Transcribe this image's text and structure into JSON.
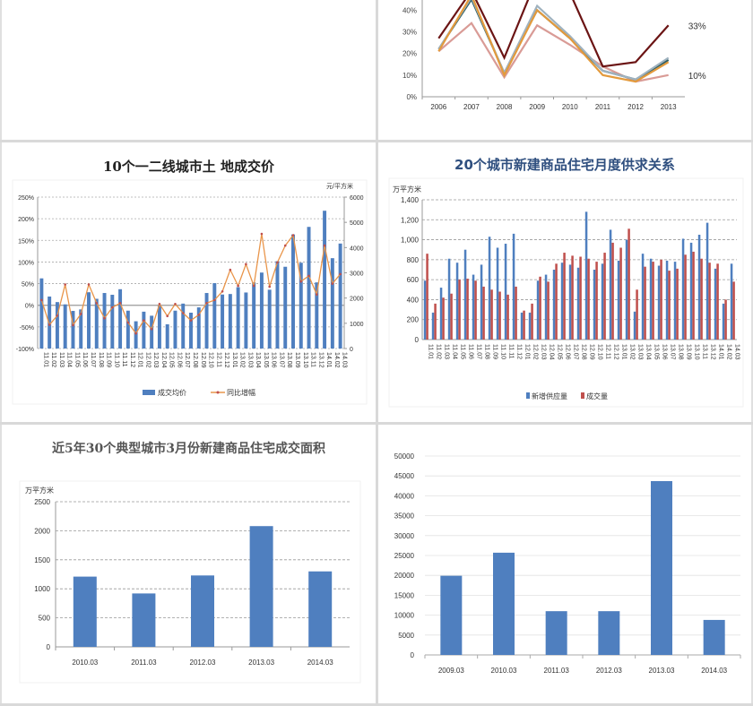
{
  "layout": {
    "grid_color": "#d9d9d9"
  },
  "chart_data": [
    {
      "id": "growth-lines",
      "type": "line",
      "title": "",
      "x": [
        "2006",
        "2007",
        "2008",
        "2009",
        "2010",
        "2011",
        "2012",
        "2013"
      ],
      "yticks": [
        "0%",
        "10%",
        "20%",
        "30%",
        "40%"
      ],
      "ylim": [
        0,
        0.48
      ],
      "series": [
        {
          "name": "dark-red",
          "color": "#6b1414",
          "values": [
            0.27,
            0.49,
            0.18,
            0.55,
            0.48,
            0.14,
            0.16,
            0.33
          ]
        },
        {
          "name": "orange",
          "color": "#e39a3c",
          "values": [
            0.21,
            0.47,
            0.1,
            0.4,
            0.27,
            0.1,
            0.07,
            0.16
          ]
        },
        {
          "name": "grey-blue",
          "color": "#9fb2bf",
          "values": [
            0.22,
            0.46,
            0.11,
            0.42,
            0.28,
            0.12,
            0.08,
            0.18
          ]
        },
        {
          "name": "teal",
          "color": "#2f5f63",
          "values": [
            0.22,
            0.45,
            0.11,
            0.4,
            0.27,
            0.12,
            0.08,
            0.17
          ]
        },
        {
          "name": "pink",
          "color": "#d99b96",
          "values": [
            0.21,
            0.34,
            0.09,
            0.33,
            0.24,
            0.14,
            0.07,
            0.1
          ]
        }
      ],
      "annotations": [
        "33%",
        "10%"
      ]
    },
    {
      "id": "land-price",
      "type": "bar+line",
      "title": "10个一二线城市土 地成交价",
      "right_axis_unit": "元/平方米",
      "left_yticks": [
        "250%",
        "200%",
        "150%",
        "100%",
        "50%",
        "0%",
        "-50%",
        "-100%"
      ],
      "right_yticks": [
        "6000",
        "5000",
        "4000",
        "3000",
        "2000",
        "1000",
        "0"
      ],
      "left_ylim": [
        -1.0,
        2.5
      ],
      "right_ylim": [
        0,
        6000
      ],
      "categories": [
        "11.01",
        "11.02",
        "11.03",
        "11.04",
        "11.05",
        "11.06",
        "11.07",
        "11.08",
        "11.09",
        "11.10",
        "11.11",
        "11.12",
        "12.01",
        "12.02",
        "12.03",
        "12.04",
        "12.05",
        "12.06",
        "12.07",
        "12.08",
        "12.09",
        "12.10",
        "12.11",
        "12.12",
        "13.01",
        "13.02",
        "13.03",
        "13.04",
        "13.05",
        "13.06",
        "13.07",
        "13.08",
        "13.09",
        "13.10",
        "13.11",
        "13.12",
        "14.01",
        "14.02",
        "14.03"
      ],
      "series": [
        {
          "name": "成交均价",
          "type": "bar",
          "axis": "right",
          "color": "#4f7fbf",
          "values": [
            2780,
            2060,
            1840,
            1750,
            1490,
            1550,
            2230,
            1970,
            2200,
            2130,
            2350,
            1500,
            1080,
            1460,
            1300,
            1700,
            960,
            1500,
            1780,
            1420,
            1630,
            2200,
            2590,
            2140,
            2160,
            2430,
            2220,
            2620,
            3010,
            2330,
            3460,
            3240,
            4520,
            3400,
            4820,
            2620,
            5460,
            3580,
            4160
          ]
        },
        {
          "name": "同比增幅",
          "type": "line",
          "axis": "left",
          "color": "#e9954a",
          "values": [
            0.12,
            -0.45,
            -0.24,
            0.48,
            -0.46,
            -0.2,
            0.48,
            0.05,
            -0.3,
            -0.05,
            0.05,
            -0.4,
            -0.65,
            -0.35,
            -0.55,
            0.03,
            -0.25,
            0.03,
            -0.18,
            -0.35,
            -0.22,
            0.05,
            0.12,
            0.32,
            0.82,
            0.45,
            0.95,
            0.45,
            1.65,
            0.43,
            0.99,
            1.38,
            1.62,
            0.55,
            0.68,
            0.25,
            1.38,
            0.5,
            0.72
          ]
        }
      ],
      "legend": [
        "成交均价",
        "同比增幅"
      ],
      "legend_position": "bottom"
    },
    {
      "id": "supply-demand",
      "type": "bar",
      "title": "20个城市新建商品住宅月度供求关系",
      "ylabel": "万平方米",
      "yticks": [
        "1,400",
        "1,200",
        "1,000",
        "800",
        "600",
        "400",
        "200",
        "0"
      ],
      "ylim": [
        0,
        1400
      ],
      "categories": [
        "11.01",
        "11.02",
        "11.03",
        "11.04",
        "11.05",
        "11.06",
        "11.07",
        "11.08",
        "11.09",
        "11.10",
        "11.11",
        "11.12",
        "12.01",
        "12.02",
        "12.03",
        "12.04",
        "12.05",
        "12.06",
        "12.07",
        "12.08",
        "12.09",
        "12.10",
        "12.11",
        "12.12",
        "13.01",
        "13.02",
        "13.03",
        "13.04",
        "13.05",
        "13.06",
        "13.07",
        "13.08",
        "13.09",
        "13.10",
        "13.11",
        "13.12",
        "14.01",
        "14.02",
        "14.03"
      ],
      "series": [
        {
          "name": "新增供应量",
          "color": "#4f7fbf",
          "values": [
            590,
            270,
            520,
            810,
            770,
            900,
            650,
            750,
            1030,
            920,
            960,
            1060,
            270,
            270,
            590,
            650,
            700,
            770,
            750,
            720,
            1280,
            700,
            760,
            1100,
            790,
            1000,
            280,
            860,
            810,
            740,
            790,
            780,
            1010,
            970,
            1050,
            1170,
            710,
            360,
            760
          ]
        },
        {
          "name": "成交量",
          "color": "#c0504d",
          "values": [
            860,
            360,
            420,
            460,
            600,
            610,
            590,
            530,
            500,
            480,
            450,
            530,
            290,
            360,
            630,
            580,
            760,
            870,
            840,
            830,
            810,
            780,
            870,
            970,
            920,
            1110,
            500,
            730,
            780,
            800,
            690,
            710,
            850,
            880,
            810,
            770,
            760,
            400,
            580
          ]
        }
      ],
      "legend": [
        "新增供应量",
        "成交量"
      ],
      "legend_position": "bottom"
    },
    {
      "id": "march-area",
      "type": "bar",
      "title": "近5年30个典型城市3月份新建商品住宅成交面积",
      "ylabel": "万平方米",
      "yticks": [
        "2500",
        "2000",
        "1500",
        "1000",
        "500",
        "0"
      ],
      "ylim": [
        0,
        2500
      ],
      "categories": [
        "2010.03",
        "2011.03",
        "2012.03",
        "2013.03",
        "2014.03"
      ],
      "values": [
        1210,
        920,
        1230,
        2080,
        1300
      ],
      "color": "#4f7fbf"
    },
    {
      "id": "march-values",
      "type": "bar",
      "title": "",
      "yticks": [
        "50000",
        "45000",
        "40000",
        "35000",
        "30000",
        "25000",
        "20000",
        "15000",
        "10000",
        "5000",
        "0"
      ],
      "ylim": [
        0,
        50000
      ],
      "categories": [
        "2009.03",
        "2010.03",
        "2011.03",
        "2012.03",
        "2013.03",
        "2014.03"
      ],
      "values": [
        19900,
        25700,
        11000,
        11000,
        43700,
        8800
      ],
      "color": "#4f7fbf"
    }
  ]
}
